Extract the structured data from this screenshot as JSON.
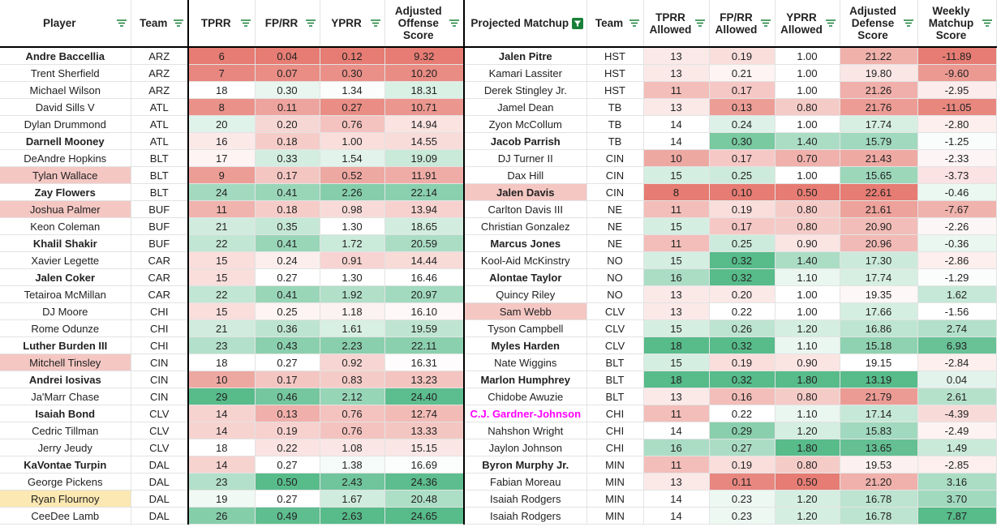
{
  "columns": [
    {
      "key": "player",
      "label": "Player"
    },
    {
      "key": "team",
      "label": "Team"
    },
    {
      "key": "tprr",
      "label": "TPRR"
    },
    {
      "key": "fprr",
      "label": "FP/RR"
    },
    {
      "key": "yprr",
      "label": "YPRR"
    },
    {
      "key": "aos",
      "label": "Adjusted Offense Score"
    },
    {
      "key": "matchup",
      "label": "Projected Matchup"
    },
    {
      "key": "mteam",
      "label": "Team"
    },
    {
      "key": "tprr_a",
      "label": "TPRR Allowed"
    },
    {
      "key": "fprr_a",
      "label": "FP/RR Allowed"
    },
    {
      "key": "yprr_a",
      "label": "YPRR Allowed"
    },
    {
      "key": "ads",
      "label": "Adjusted Defense Score"
    },
    {
      "key": "wms",
      "label": "Weekly Matchup Score"
    }
  ],
  "colors": {
    "header_filter_icon": "#188038",
    "active_filter_bg": "#188038",
    "highlight_pink": "#f4c7c3",
    "highlight_yellow": "#fce8b2",
    "magenta_text": "#ff00ff",
    "gridline": "#e2e3e3",
    "red_max": "#e67c73",
    "green_max": "#57bb8a"
  },
  "rows": [
    {
      "player": "Andre Baccellia",
      "pb": 1,
      "team": "ARZ",
      "tprr": "6",
      "fprr": "0.04",
      "yprr": "0.12",
      "aos": "9.32",
      "matchup": "Jalen Pitre",
      "mb": 1,
      "mteam": "HST",
      "tprr_a": "13",
      "fprr_a": "0.19",
      "yprr_a": "1.00",
      "ads": "21.22",
      "wms": "-11.89"
    },
    {
      "player": "Trent Sherfield",
      "team": "ARZ",
      "tprr": "7",
      "fprr": "0.07",
      "yprr": "0.30",
      "aos": "10.20",
      "matchup": "Kamari Lassiter",
      "mteam": "HST",
      "tprr_a": "13",
      "fprr_a": "0.21",
      "yprr_a": "1.00",
      "ads": "19.80",
      "wms": "-9.60"
    },
    {
      "player": "Michael Wilson",
      "team": "ARZ",
      "tprr": "18",
      "fprr": "0.30",
      "yprr": "1.34",
      "aos": "18.31",
      "matchup": "Derek Stingley Jr.",
      "mteam": "HST",
      "tprr_a": "11",
      "fprr_a": "0.17",
      "yprr_a": "1.00",
      "ads": "21.26",
      "wms": "-2.95"
    },
    {
      "player": "David Sills V",
      "team": "ATL",
      "tprr": "8",
      "fprr": "0.11",
      "yprr": "0.27",
      "aos": "10.71",
      "matchup": "Jamel Dean",
      "mteam": "TB",
      "tprr_a": "13",
      "fprr_a": "0.13",
      "yprr_a": "0.80",
      "ads": "21.76",
      "wms": "-11.05"
    },
    {
      "player": "Dylan Drummond",
      "team": "ATL",
      "tprr": "20",
      "fprr": "0.20",
      "yprr": "0.76",
      "aos": "14.94",
      "matchup": "Zyon McCollum",
      "mteam": "TB",
      "tprr_a": "14",
      "fprr_a": "0.24",
      "yprr_a": "1.00",
      "ads": "17.74",
      "wms": "-2.80"
    },
    {
      "player": "Darnell Mooney",
      "pb": 1,
      "team": "ATL",
      "tprr": "16",
      "fprr": "0.18",
      "yprr": "1.00",
      "aos": "14.55",
      "matchup": "Jacob Parrish",
      "mb": 1,
      "mteam": "TB",
      "tprr_a": "14",
      "fprr_a": "0.30",
      "yprr_a": "1.40",
      "ads": "15.79",
      "wms": "-1.25"
    },
    {
      "player": "DeAndre Hopkins",
      "team": "BLT",
      "tprr": "17",
      "fprr": "0.33",
      "yprr": "1.54",
      "aos": "19.09",
      "matchup": "DJ Turner II",
      "mteam": "CIN",
      "tprr_a": "10",
      "fprr_a": "0.17",
      "yprr_a": "0.70",
      "ads": "21.43",
      "wms": "-2.33"
    },
    {
      "player": "Tylan Wallace",
      "pbg": "pink",
      "team": "BLT",
      "tprr": "9",
      "fprr": "0.17",
      "yprr": "0.52",
      "aos": "11.91",
      "matchup": "Dax Hill",
      "mteam": "CIN",
      "tprr_a": "15",
      "fprr_a": "0.25",
      "yprr_a": "1.00",
      "ads": "15.65",
      "wms": "-3.73"
    },
    {
      "player": "Zay Flowers",
      "pb": 1,
      "team": "BLT",
      "tprr": "24",
      "fprr": "0.41",
      "yprr": "2.26",
      "aos": "22.14",
      "matchup": "Jalen Davis",
      "mb": 1,
      "mbg": "pink",
      "mteam": "CIN",
      "tprr_a": "8",
      "fprr_a": "0.10",
      "yprr_a": "0.50",
      "ads": "22.61",
      "wms": "-0.46"
    },
    {
      "player": "Joshua Palmer",
      "pbg": "pink",
      "team": "BUF",
      "tprr": "11",
      "fprr": "0.18",
      "yprr": "0.98",
      "aos": "13.94",
      "matchup": "Carlton Davis III",
      "mteam": "NE",
      "tprr_a": "11",
      "fprr_a": "0.19",
      "yprr_a": "0.80",
      "ads": "21.61",
      "wms": "-7.67"
    },
    {
      "player": "Keon Coleman",
      "team": "BUF",
      "tprr": "21",
      "fprr": "0.35",
      "yprr": "1.30",
      "aos": "18.65",
      "matchup": "Christian Gonzalez",
      "mteam": "NE",
      "tprr_a": "15",
      "fprr_a": "0.17",
      "yprr_a": "0.80",
      "ads": "20.90",
      "wms": "-2.26"
    },
    {
      "player": "Khalil Shakir",
      "pb": 1,
      "team": "BUF",
      "tprr": "22",
      "fprr": "0.41",
      "yprr": "1.72",
      "aos": "20.59",
      "matchup": "Marcus Jones",
      "mb": 1,
      "mteam": "NE",
      "tprr_a": "11",
      "fprr_a": "0.25",
      "yprr_a": "0.90",
      "ads": "20.96",
      "wms": "-0.36"
    },
    {
      "player": "Xavier Legette",
      "team": "CAR",
      "tprr": "15",
      "fprr": "0.24",
      "yprr": "0.91",
      "aos": "14.44",
      "matchup": "Kool-Aid McKinstry",
      "mteam": "NO",
      "tprr_a": "15",
      "fprr_a": "0.32",
      "yprr_a": "1.40",
      "ads": "17.30",
      "wms": "-2.86"
    },
    {
      "player": "Jalen Coker",
      "pb": 1,
      "team": "CAR",
      "tprr": "15",
      "fprr": "0.27",
      "yprr": "1.30",
      "aos": "16.46",
      "matchup": "Alontae Taylor",
      "mb": 1,
      "mteam": "NO",
      "tprr_a": "16",
      "fprr_a": "0.32",
      "yprr_a": "1.10",
      "ads": "17.74",
      "wms": "-1.29"
    },
    {
      "player": "Tetairoa McMillan",
      "team": "CAR",
      "tprr": "22",
      "fprr": "0.41",
      "yprr": "1.92",
      "aos": "20.97",
      "matchup": "Quincy Riley",
      "mteam": "NO",
      "tprr_a": "13",
      "fprr_a": "0.20",
      "yprr_a": "1.00",
      "ads": "19.35",
      "wms": "1.62"
    },
    {
      "player": "DJ Moore",
      "team": "CHI",
      "tprr": "15",
      "fprr": "0.25",
      "yprr": "1.18",
      "aos": "16.10",
      "matchup": "Sam Webb",
      "mbg": "pink",
      "mteam": "CLV",
      "tprr_a": "13",
      "fprr_a": "0.22",
      "yprr_a": "1.00",
      "ads": "17.66",
      "wms": "-1.56"
    },
    {
      "player": "Rome Odunze",
      "team": "CHI",
      "tprr": "21",
      "fprr": "0.36",
      "yprr": "1.61",
      "aos": "19.59",
      "matchup": "Tyson Campbell",
      "mteam": "CLV",
      "tprr_a": "15",
      "fprr_a": "0.26",
      "yprr_a": "1.20",
      "ads": "16.86",
      "wms": "2.74"
    },
    {
      "player": "Luther Burden III",
      "pb": 1,
      "team": "CHI",
      "tprr": "23",
      "fprr": "0.43",
      "yprr": "2.23",
      "aos": "22.11",
      "matchup": "Myles Harden",
      "mb": 1,
      "mteam": "CLV",
      "tprr_a": "18",
      "fprr_a": "0.32",
      "yprr_a": "1.10",
      "ads": "15.18",
      "wms": "6.93"
    },
    {
      "player": "Mitchell Tinsley",
      "pbg": "pink",
      "team": "CIN",
      "tprr": "18",
      "fprr": "0.27",
      "yprr": "0.92",
      "aos": "16.31",
      "matchup": "Nate Wiggins",
      "mteam": "BLT",
      "tprr_a": "15",
      "fprr_a": "0.19",
      "yprr_a": "0.90",
      "ads": "19.15",
      "wms": "-2.84"
    },
    {
      "player": "Andrei Iosivas",
      "pb": 1,
      "team": "CIN",
      "tprr": "10",
      "fprr": "0.17",
      "yprr": "0.83",
      "aos": "13.23",
      "matchup": "Marlon Humphrey",
      "mb": 1,
      "mteam": "BLT",
      "tprr_a": "18",
      "fprr_a": "0.32",
      "yprr_a": "1.80",
      "ads": "13.19",
      "wms": "0.04"
    },
    {
      "player": "Ja'Marr Chase",
      "team": "CIN",
      "tprr": "29",
      "fprr": "0.46",
      "yprr": "2.12",
      "aos": "24.40",
      "matchup": "Chidobe Awuzie",
      "mteam": "BLT",
      "tprr_a": "13",
      "fprr_a": "0.16",
      "yprr_a": "0.80",
      "ads": "21.79",
      "wms": "2.61"
    },
    {
      "player": "Isaiah Bond",
      "pb": 1,
      "team": "CLV",
      "tprr": "14",
      "fprr": "0.13",
      "yprr": "0.76",
      "aos": "12.74",
      "matchup": "C.J. Gardner-Johnson",
      "mb": 1,
      "mcolor": "magenta",
      "mteam": "CHI",
      "tprr_a": "11",
      "fprr_a": "0.22",
      "yprr_a": "1.10",
      "ads": "17.14",
      "wms": "-4.39"
    },
    {
      "player": "Cedric Tillman",
      "team": "CLV",
      "tprr": "14",
      "fprr": "0.19",
      "yprr": "0.76",
      "aos": "13.33",
      "matchup": "Nahshon Wright",
      "mteam": "CHI",
      "tprr_a": "14",
      "fprr_a": "0.29",
      "yprr_a": "1.20",
      "ads": "15.83",
      "wms": "-2.49"
    },
    {
      "player": "Jerry Jeudy",
      "team": "CLV",
      "tprr": "18",
      "fprr": "0.22",
      "yprr": "1.08",
      "aos": "15.15",
      "matchup": "Jaylon Johnson",
      "mteam": "CHI",
      "tprr_a": "16",
      "fprr_a": "0.27",
      "yprr_a": "1.80",
      "ads": "13.65",
      "wms": "1.49"
    },
    {
      "player": "KaVontae Turpin",
      "pb": 1,
      "team": "DAL",
      "tprr": "14",
      "fprr": "0.27",
      "yprr": "1.38",
      "aos": "16.69",
      "matchup": "Byron Murphy Jr.",
      "mb": 1,
      "mteam": "MIN",
      "tprr_a": "11",
      "fprr_a": "0.19",
      "yprr_a": "0.80",
      "ads": "19.53",
      "wms": "-2.85"
    },
    {
      "player": "George Pickens",
      "team": "DAL",
      "tprr": "23",
      "fprr": "0.50",
      "yprr": "2.43",
      "aos": "24.36",
      "matchup": "Fabian Moreau",
      "mteam": "MIN",
      "tprr_a": "13",
      "fprr_a": "0.11",
      "yprr_a": "0.50",
      "ads": "21.20",
      "wms": "3.16"
    },
    {
      "player": "Ryan Flournoy",
      "pbg": "yellow",
      "team": "DAL",
      "tprr": "19",
      "fprr": "0.27",
      "yprr": "1.67",
      "aos": "20.48",
      "matchup": "Isaiah Rodgers",
      "mteam": "MIN",
      "tprr_a": "14",
      "fprr_a": "0.23",
      "yprr_a": "1.20",
      "ads": "16.78",
      "wms": "3.70"
    },
    {
      "player": "CeeDee Lamb",
      "team": "DAL",
      "tprr": "26",
      "fprr": "0.49",
      "yprr": "2.63",
      "aos": "24.65",
      "matchup": "Isaiah Rodgers",
      "mteam": "MIN",
      "tprr_a": "14",
      "fprr_a": "0.23",
      "yprr_a": "1.20",
      "ads": "16.78",
      "wms": "7.87"
    }
  ]
}
